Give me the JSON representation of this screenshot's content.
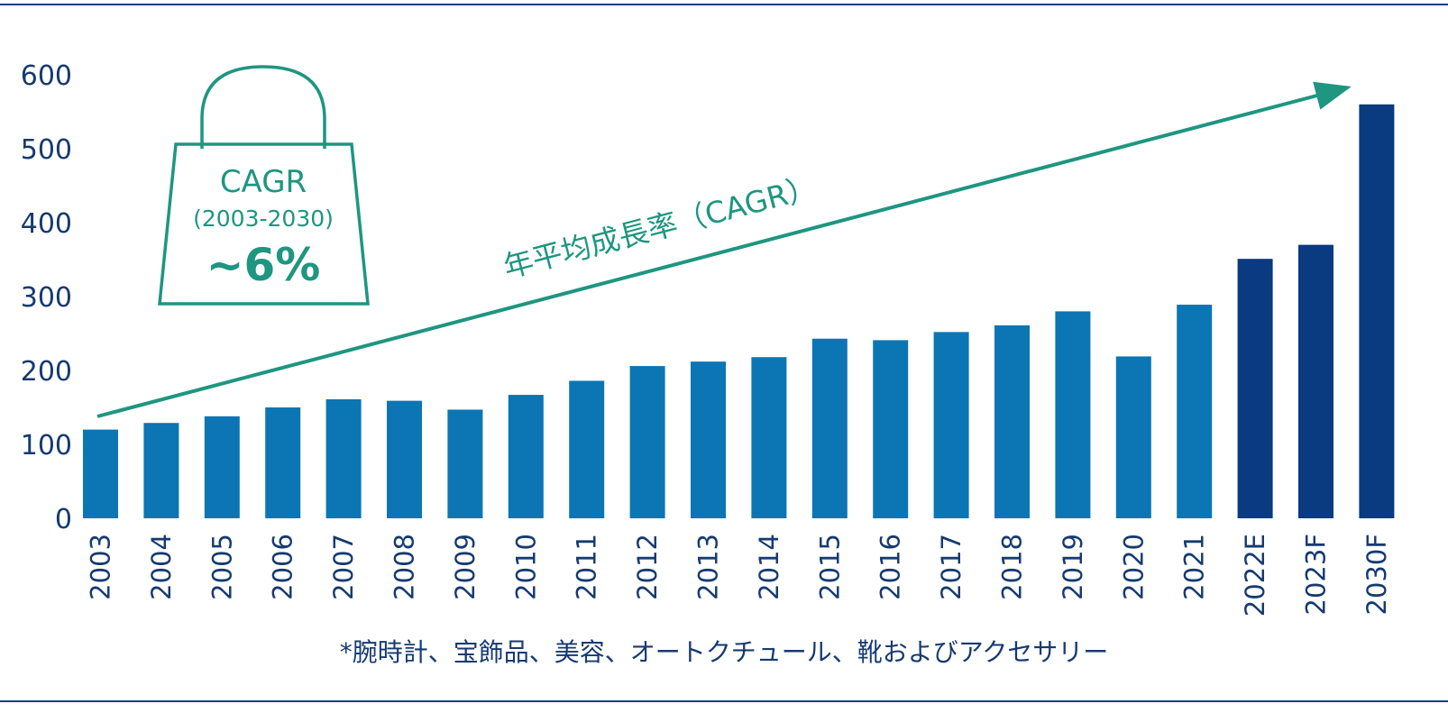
{
  "chart_data": {
    "type": "bar",
    "categories": [
      "2003",
      "2004",
      "2005",
      "2006",
      "2007",
      "2008",
      "2009",
      "2010",
      "2011",
      "2012",
      "2013",
      "2014",
      "2015",
      "2016",
      "2017",
      "2018",
      "2019",
      "2020",
      "2021",
      "2022E",
      "2023F",
      "2030F"
    ],
    "values": [
      120,
      129,
      138,
      150,
      161,
      159,
      147,
      167,
      186,
      206,
      212,
      218,
      243,
      241,
      252,
      261,
      280,
      219,
      289,
      351,
      370,
      560
    ],
    "ylim": [
      0,
      600
    ],
    "yticks": [
      "0",
      "100",
      "200",
      "300",
      "400",
      "500",
      "600"
    ],
    "grid": false,
    "trend_label": "年平均成長率（CAGR）",
    "callout": {
      "title": "CAGR",
      "period": "(2003-2030)",
      "value": "~6%"
    },
    "colors": {
      "actual": "#0b76b3",
      "forecast": "#0a3a80",
      "accent": "#1e9680",
      "text": "#163a70",
      "rule": "#1a3f78"
    },
    "forecast_from_index": 19
  },
  "footnote": "*腕時計、宝飾品、美容、オートクチュール、靴およびアクセサリー"
}
